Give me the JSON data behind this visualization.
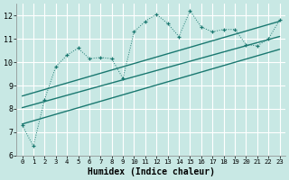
{
  "bg_color": "#c8e8e4",
  "grid_color": "#b0d8d4",
  "line_color": "#1a7870",
  "xlabel": "Humidex (Indice chaleur)",
  "x_main": [
    0,
    1,
    2,
    3,
    4,
    5,
    6,
    7,
    8,
    9,
    10,
    11,
    12,
    13,
    14,
    15,
    16,
    17,
    18,
    19,
    20,
    21,
    22,
    23
  ],
  "y_main": [
    7.3,
    6.4,
    8.4,
    9.8,
    10.3,
    10.6,
    10.15,
    10.2,
    10.15,
    9.3,
    11.3,
    11.75,
    12.05,
    11.65,
    11.1,
    12.2,
    11.5,
    11.3,
    11.4,
    11.4,
    10.75,
    10.7,
    11.0,
    11.8
  ],
  "reg_lines": [
    {
      "x0": 0,
      "x1": 23,
      "y0": 7.35,
      "y1": 10.55
    },
    {
      "x0": 0,
      "x1": 23,
      "y0": 8.05,
      "y1": 11.1
    },
    {
      "x0": 0,
      "x1": 23,
      "y0": 8.55,
      "y1": 11.75
    }
  ],
  "ylim": [
    6.0,
    12.5
  ],
  "xlim": [
    -0.5,
    23.5
  ],
  "yticks": [
    6,
    7,
    8,
    9,
    10,
    11,
    12
  ],
  "xticks": [
    0,
    1,
    2,
    3,
    4,
    5,
    6,
    7,
    8,
    9,
    10,
    11,
    12,
    13,
    14,
    15,
    16,
    17,
    18,
    19,
    20,
    21,
    22,
    23
  ]
}
